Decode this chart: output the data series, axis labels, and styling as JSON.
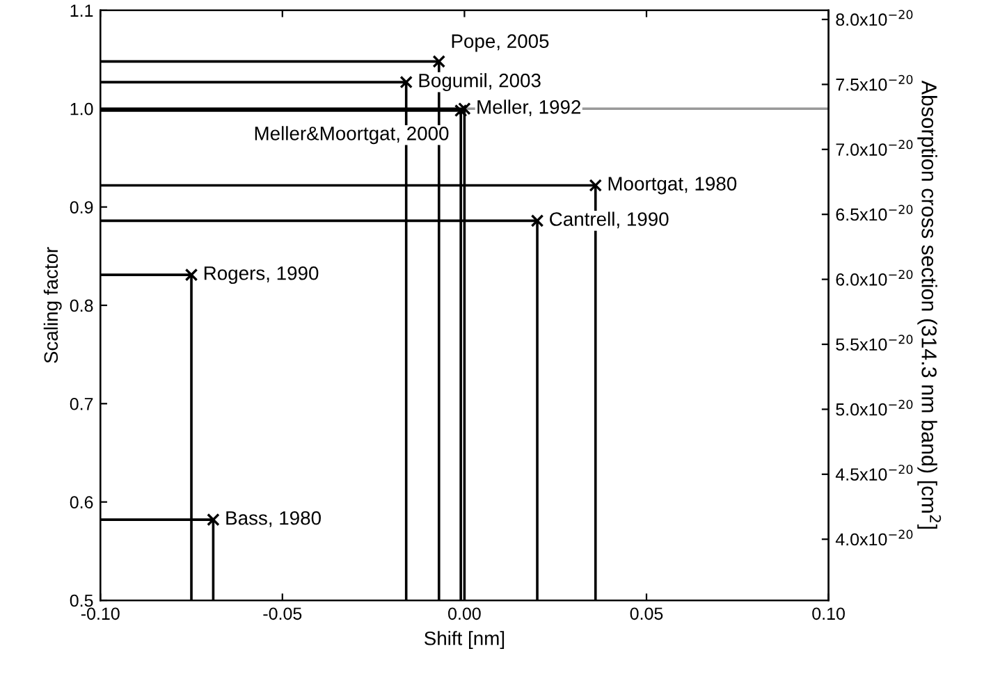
{
  "chart_data": {
    "type": "scatter",
    "xlabel": "Shift [nm]",
    "ylabel": "Scaling factor",
    "y2label": "Absorption cross section (314.3 nm band) [cm$^{2}$]",
    "xlim": [
      -0.1,
      0.1
    ],
    "xticks": [
      {
        "value": -0.1,
        "label": "-0.10"
      },
      {
        "value": -0.05,
        "label": "-0.05"
      },
      {
        "value": 0.0,
        "label": "0.00"
      },
      {
        "value": 0.05,
        "label": "0.05"
      },
      {
        "value": 0.1,
        "label": "0.10"
      }
    ],
    "ylim": [
      0.5,
      1.1
    ],
    "yticks": [
      {
        "value": 0.5,
        "label": "0.5"
      },
      {
        "value": 0.6,
        "label": "0.6"
      },
      {
        "value": 0.7,
        "label": "0.7"
      },
      {
        "value": 0.8,
        "label": "0.8"
      },
      {
        "value": 0.9,
        "label": "0.9"
      },
      {
        "value": 1.0,
        "label": "1.0"
      },
      {
        "value": 1.1,
        "label": "1.1"
      }
    ],
    "y2lim": [
      3.53e-20,
      8.07e-20
    ],
    "y2ticks": [
      {
        "value": 4e-20,
        "label": "4.0x10$^{−20}$"
      },
      {
        "value": 4.5e-20,
        "label": "4.5x10$^{−20}$"
      },
      {
        "value": 5e-20,
        "label": "5.0x10$^{−20}$"
      },
      {
        "value": 5.5e-20,
        "label": "5.5x10$^{−20}$"
      },
      {
        "value": 6e-20,
        "label": "6.0x10$^{−20}$"
      },
      {
        "value": 6.5e-20,
        "label": "6.5x10$^{−20}$"
      },
      {
        "value": 7e-20,
        "label": "7.0x10$^{−20}$"
      },
      {
        "value": 7.5e-20,
        "label": "7.5x10$^{−20}$"
      },
      {
        "value": 8e-20,
        "label": "8.0x10$^{−20}$"
      }
    ],
    "grid": false,
    "legend": false,
    "series": [
      {
        "marker": "cross",
        "color": "#000000",
        "x": [
          -0.007,
          -0.016,
          0.0,
          -0.001,
          0.036,
          0.02,
          -0.075,
          -0.069
        ],
        "values": [
          1.048,
          1.027,
          1.0,
          0.998,
          0.922,
          0.886,
          0.831,
          0.582
        ]
      },
      {
        "type": "line",
        "color": "#000000",
        "x": [
          -0.1,
          -0.007,
          -0.007
        ],
        "values": [
          1.048,
          1.048,
          0.5
        ]
      },
      {
        "type": "line",
        "color": "#000000",
        "x": [
          -0.1,
          -0.016,
          -0.016
        ],
        "values": [
          1.027,
          1.027,
          0.5
        ]
      },
      {
        "type": "line",
        "color": "#000000",
        "x": [
          -0.1,
          0.0,
          0.0
        ],
        "values": [
          1.0,
          1.0,
          0.5
        ]
      },
      {
        "type": "line",
        "color": "#000000",
        "x": [
          -0.1,
          -0.001,
          -0.001
        ],
        "values": [
          0.998,
          0.998,
          0.5
        ]
      },
      {
        "type": "line",
        "color": "#000000",
        "x": [
          -0.1,
          0.036,
          0.036
        ],
        "values": [
          0.922,
          0.922,
          0.5
        ]
      },
      {
        "type": "line",
        "color": "#000000",
        "x": [
          -0.1,
          0.02,
          0.02
        ],
        "values": [
          0.886,
          0.886,
          0.5
        ]
      },
      {
        "type": "line",
        "color": "#000000",
        "x": [
          -0.1,
          -0.075,
          -0.075
        ],
        "values": [
          0.831,
          0.831,
          0.5
        ]
      },
      {
        "type": "line",
        "color": "#000000",
        "x": [
          -0.1,
          -0.069,
          -0.069
        ],
        "values": [
          0.582,
          0.582,
          0.5
        ]
      },
      {
        "type": "line",
        "color": "#999999",
        "x": [
          0.0,
          0.1
        ],
        "values": [
          1.0,
          1.0
        ]
      }
    ],
    "annotations": [
      {
        "text": "Pope, 2005",
        "x": -0.007,
        "y": 1.048
      },
      {
        "text": "Bogumil, 2003",
        "x": -0.016,
        "y": 1.027
      },
      {
        "text": "Meller, 1992",
        "x": 0.0,
        "y": 1.0
      },
      {
        "text": "Meller&Moortgat, 2000",
        "x": -0.001,
        "y": 0.998
      },
      {
        "text": "Moortgat, 1980",
        "x": 0.036,
        "y": 0.922
      },
      {
        "text": "Cantrell, 1990",
        "x": 0.02,
        "y": 0.886
      },
      {
        "text": "Rogers, 1990",
        "x": -0.075,
        "y": 0.831
      },
      {
        "text": "Bass, 1980",
        "x": -0.069,
        "y": 0.582
      }
    ]
  }
}
